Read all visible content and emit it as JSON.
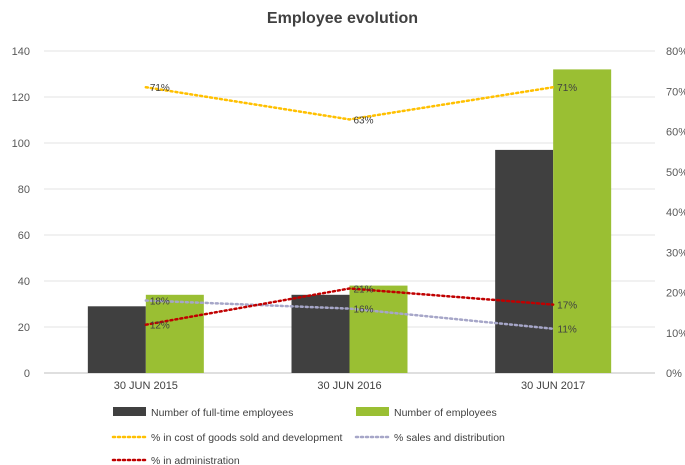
{
  "chart_data": {
    "type": "bar",
    "title": "Employee evolution",
    "categories": [
      "30 JUN 2015",
      "30 JUN 2016",
      "30 JUN 2017"
    ],
    "y_left": {
      "min": 0,
      "max": 140,
      "step": 20,
      "ticks": [
        "0",
        "20",
        "40",
        "60",
        "80",
        "100",
        "120",
        "140"
      ]
    },
    "y_right": {
      "min": 0,
      "max": 80,
      "step": 10,
      "ticks": [
        "0%",
        "10%",
        "20%",
        "30%",
        "40%",
        "50%",
        "60%",
        "70%",
        "80%"
      ]
    },
    "bar_series": [
      {
        "name": "Number of full-time employees",
        "values": [
          29,
          34,
          97
        ],
        "color": "#404040"
      },
      {
        "name": "Number of employees",
        "values": [
          34,
          38,
          132
        ],
        "color": "#9ABF33"
      }
    ],
    "line_series": [
      {
        "name": "% in cost of goods sold and development",
        "values": [
          71,
          63,
          71
        ],
        "labels": [
          "71%",
          "63%",
          "71%"
        ],
        "color": "#FFC000"
      },
      {
        "name": "% sales and distribution",
        "values": [
          18,
          16,
          11
        ],
        "labels": [
          "18%",
          "16%",
          "11%"
        ],
        "color": "#A6A6C8"
      },
      {
        "name": "% in administration",
        "values": [
          12,
          21,
          17
        ],
        "labels": [
          "12%",
          "21%",
          "17%"
        ],
        "color": "#C00000"
      }
    ],
    "grid": "horizontal",
    "legend": "bottom"
  }
}
